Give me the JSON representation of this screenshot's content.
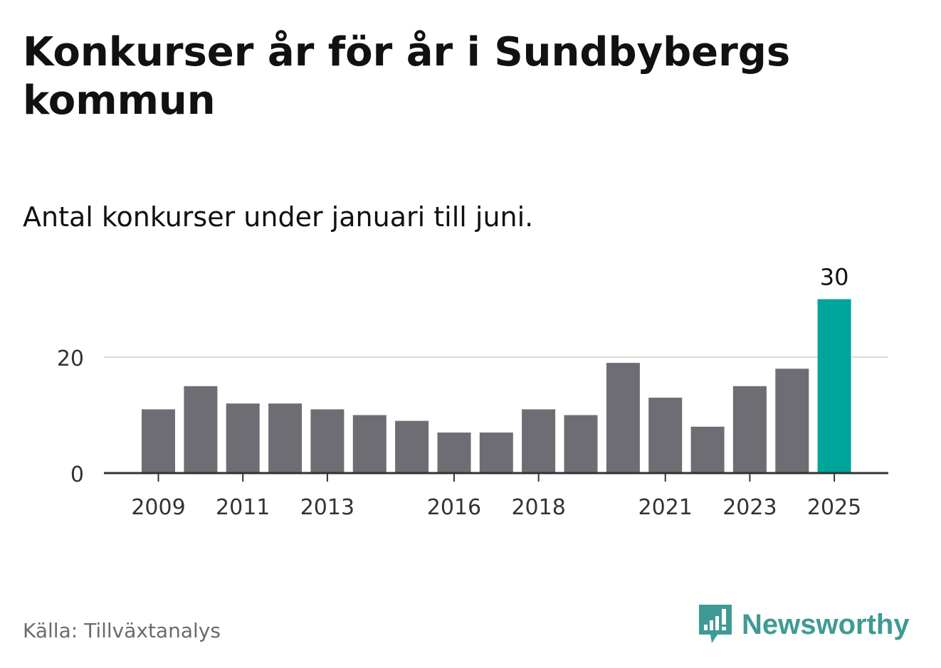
{
  "chart_data": {
    "type": "bar",
    "title": "Konkurser år för år i Sundbybergs kommun",
    "subtitle": "Antal konkurser under januari till juni.",
    "categories": [
      "2009",
      "2010",
      "2011",
      "2012",
      "2013",
      "2014",
      "2015",
      "2016",
      "2017",
      "2018",
      "2019",
      "2020",
      "2021",
      "2022",
      "2023",
      "2024",
      "2025"
    ],
    "values": [
      11,
      15,
      12,
      12,
      11,
      10,
      9,
      7,
      7,
      11,
      10,
      19,
      13,
      8,
      15,
      18,
      30
    ],
    "x_tick_labels": [
      "2009",
      "2011",
      "2013",
      "2016",
      "2018",
      "2021",
      "2023",
      "2025"
    ],
    "y_ticks": [
      0,
      20
    ],
    "ylim": [
      0,
      30
    ],
    "grid": true,
    "highlight_category": "2025",
    "highlight_label": "30",
    "xlabel": "",
    "ylabel": ""
  },
  "colors": {
    "bar": "#6e6d73",
    "highlight": "#00a59a",
    "grid": "#dddddd",
    "axis": "#333333",
    "brand": "#3f9a95"
  },
  "footer": {
    "source": "Källa: Tillväxtanalys",
    "brand": "Newsworthy",
    "brand_icon": "newsworthy-logo-icon"
  }
}
